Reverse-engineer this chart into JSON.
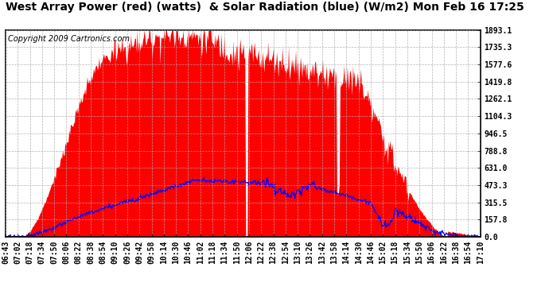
{
  "title": "West Array Power (red) (watts)  & Solar Radiation (blue) (W/m2) Mon Feb 16 17:25",
  "copyright": "Copyright 2009 Cartronics.com",
  "yticks": [
    0.0,
    157.8,
    315.5,
    473.3,
    631.0,
    788.8,
    946.5,
    1104.3,
    1262.1,
    1419.8,
    1577.6,
    1735.3,
    1893.1
  ],
  "ymax": 1893.1,
  "background_color": "#ffffff",
  "plot_bg_color": "#ffffff",
  "grid_color": "#aaaaaa",
  "fill_color": "#ff0000",
  "line_color": "#0000ff",
  "title_fontsize": 10,
  "copyright_fontsize": 7,
  "tick_fontsize": 7,
  "xtick_labels": [
    "06:43",
    "07:02",
    "07:18",
    "07:34",
    "07:50",
    "08:06",
    "08:22",
    "08:38",
    "08:54",
    "09:10",
    "09:26",
    "09:42",
    "09:58",
    "10:14",
    "10:30",
    "10:46",
    "11:02",
    "11:18",
    "11:34",
    "11:50",
    "12:06",
    "12:22",
    "12:38",
    "12:54",
    "13:10",
    "13:26",
    "13:42",
    "13:58",
    "14:14",
    "14:30",
    "14:46",
    "15:02",
    "15:18",
    "15:34",
    "15:50",
    "16:06",
    "16:22",
    "16:38",
    "16:54",
    "17:10"
  ]
}
